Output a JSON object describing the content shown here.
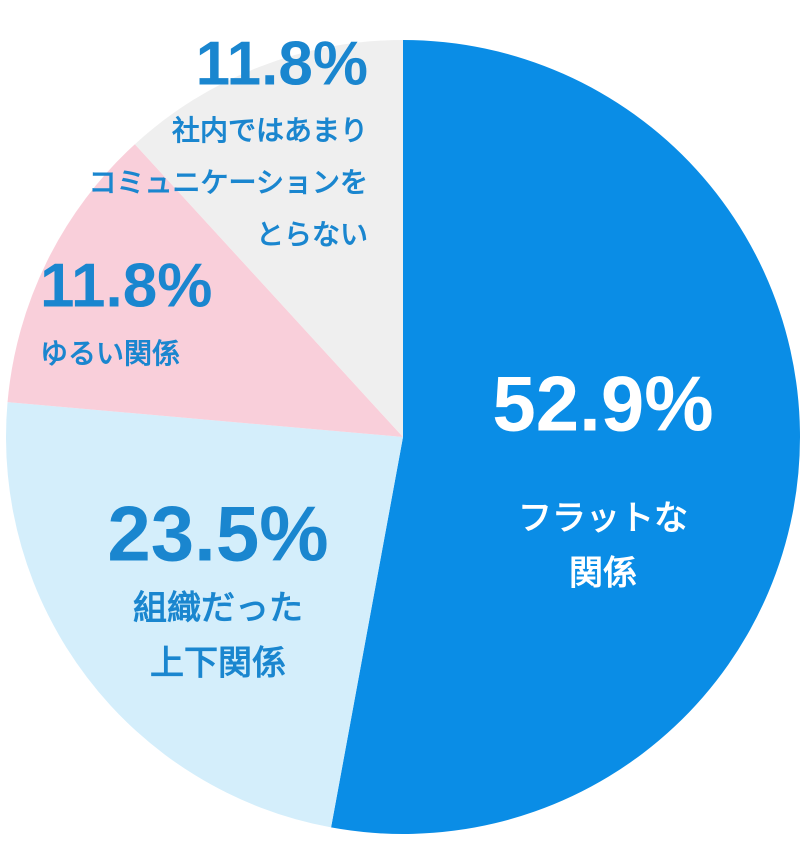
{
  "chart_data": {
    "type": "pie",
    "categories": [
      [
        "フラットな",
        "関係"
      ],
      [
        "組織だった",
        "上下関係"
      ],
      [
        "ゆるい関係"
      ],
      [
        "社内ではあまり",
        "コミュニケーションを",
        "とらない"
      ]
    ],
    "values": [
      52.9,
      23.5,
      11.8,
      11.8
    ],
    "value_labels": [
      "52.9%",
      "23.5%",
      "11.8%",
      "11.8%"
    ],
    "colors": [
      "#0a8de6",
      "#d4eefb",
      "#f9cfda",
      "#efefef"
    ],
    "label_colors": [
      "#ffffff",
      "#1a86cf",
      "#1a86cf",
      "#1a86cf"
    ]
  }
}
